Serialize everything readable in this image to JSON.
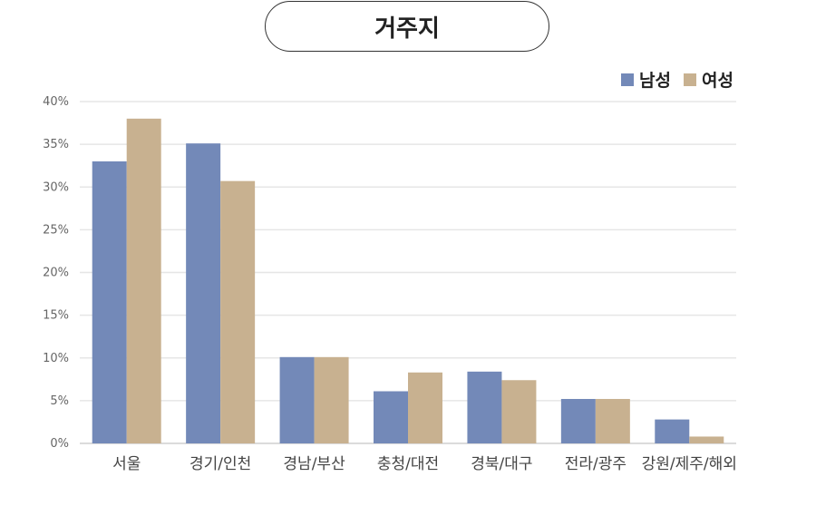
{
  "chart_data": {
    "type": "bar",
    "title": "거주지",
    "categories": [
      "서울",
      "경기/인천",
      "경남/부산",
      "충청/대전",
      "경북/대구",
      "전라/광주",
      "강원/제주/해외"
    ],
    "series": [
      {
        "name": "남성",
        "color": "#7389b8",
        "values": [
          33.0,
          35.1,
          10.1,
          6.1,
          8.4,
          5.2,
          2.8
        ]
      },
      {
        "name": "여성",
        "color": "#c8b190",
        "values": [
          38.0,
          30.7,
          10.1,
          8.3,
          7.4,
          5.2,
          0.8
        ]
      }
    ],
    "ylim": [
      0,
      40
    ],
    "yticks": [
      0,
      5,
      10,
      15,
      20,
      25,
      30,
      35,
      40
    ],
    "ytick_labels": [
      "0%",
      "5%",
      "10%",
      "15%",
      "20%",
      "25%",
      "30%",
      "35%",
      "40%"
    ],
    "grid": true,
    "legend_position": "top-right"
  }
}
